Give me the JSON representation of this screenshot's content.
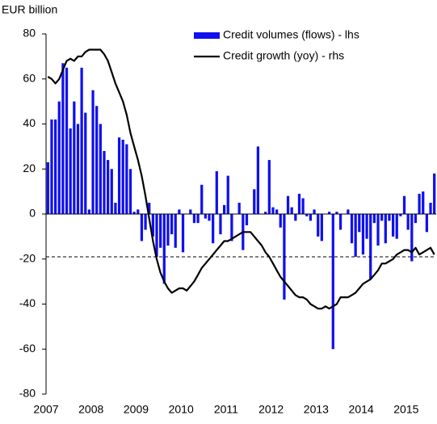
{
  "chart_data": {
    "type": "bar_line",
    "y_axis_label": "EUR billion",
    "categories": [
      "2007",
      null,
      null,
      null,
      null,
      null,
      null,
      null,
      null,
      null,
      null,
      null,
      "2008",
      null,
      null,
      null,
      null,
      null,
      null,
      null,
      null,
      null,
      null,
      null,
      "2009",
      null,
      null,
      null,
      null,
      null,
      null,
      null,
      null,
      null,
      null,
      null,
      "2010",
      null,
      null,
      null,
      null,
      null,
      null,
      null,
      null,
      null,
      null,
      null,
      "2011",
      null,
      null,
      null,
      null,
      null,
      null,
      null,
      null,
      null,
      null,
      null,
      "2012",
      null,
      null,
      null,
      null,
      null,
      null,
      null,
      null,
      null,
      null,
      null,
      "2013",
      null,
      null,
      null,
      null,
      null,
      null,
      null,
      null,
      null,
      null,
      null,
      "2014",
      null,
      null,
      null,
      null,
      null,
      null,
      null,
      null,
      null,
      null,
      null,
      "2015",
      null,
      null,
      null,
      null,
      null,
      null,
      null
    ],
    "series": [
      {
        "name": "Credit volumes (flows) - lhs",
        "kind": "bar",
        "color": "#1010ee",
        "values": [
          23,
          42,
          42,
          50,
          67,
          65,
          38,
          50,
          40,
          65,
          45,
          2,
          55,
          48,
          40,
          28,
          24,
          20,
          5,
          34,
          33,
          31,
          20,
          1,
          2,
          -12,
          -7,
          5,
          -10,
          -19,
          -15,
          -31,
          -14,
          -9,
          -15,
          2,
          -17,
          0,
          2,
          -4,
          -4,
          13,
          -2,
          -3,
          -13,
          19,
          -9,
          4,
          17,
          -12,
          0,
          5,
          -16,
          -5,
          0,
          11,
          30,
          0,
          1,
          24,
          3,
          2,
          -6,
          -38,
          8,
          3,
          -3,
          9,
          7,
          -1,
          -3,
          2,
          -10,
          -12,
          0,
          1,
          -60,
          1,
          -7,
          0,
          2,
          -13,
          -19,
          -8,
          -18,
          -11,
          -29,
          -4,
          -14,
          -3,
          -13,
          -3,
          -10,
          -11,
          -1,
          8,
          -7,
          -21,
          -4,
          9,
          10,
          -8,
          5,
          18
        ]
      },
      {
        "name": "Credit growth (yoy) - rhs",
        "kind": "line",
        "color": "#000000",
        "values": [
          61,
          60,
          58,
          60,
          64,
          68,
          69,
          68,
          70,
          70,
          72,
          73,
          73,
          73,
          73,
          71,
          68,
          63,
          58,
          54,
          50,
          44,
          36,
          30,
          24,
          17,
          8,
          -2,
          -12,
          -20,
          -26,
          -30,
          -33,
          -35,
          -34,
          -33,
          -33,
          -34,
          -32,
          -30,
          -27,
          -24,
          -22,
          -20,
          -18,
          -16,
          -14,
          -12,
          -12,
          -11,
          -10,
          -9,
          -8,
          -8,
          -8,
          -10,
          -12,
          -14,
          -17,
          -19,
          -22,
          -25,
          -28,
          -30,
          -32,
          -34,
          -36,
          -37,
          -37,
          -38,
          -40,
          -41,
          -42,
          -42,
          -41,
          -42,
          -41,
          -40,
          -37,
          -37,
          -37,
          -36,
          -35,
          -33,
          -31,
          -30,
          -29,
          -27,
          -25,
          -22,
          -22,
          -21,
          -20,
          -18,
          -17,
          -16,
          -16,
          -17,
          -15,
          -18,
          -17,
          -16,
          -15,
          -18
        ]
      }
    ],
    "reference_line": -19,
    "ylim": [
      -80,
      80
    ],
    "yticks": [
      -80,
      -60,
      -40,
      -20,
      0,
      20,
      40,
      60,
      80
    ],
    "legend": "top-right",
    "grid": false
  }
}
